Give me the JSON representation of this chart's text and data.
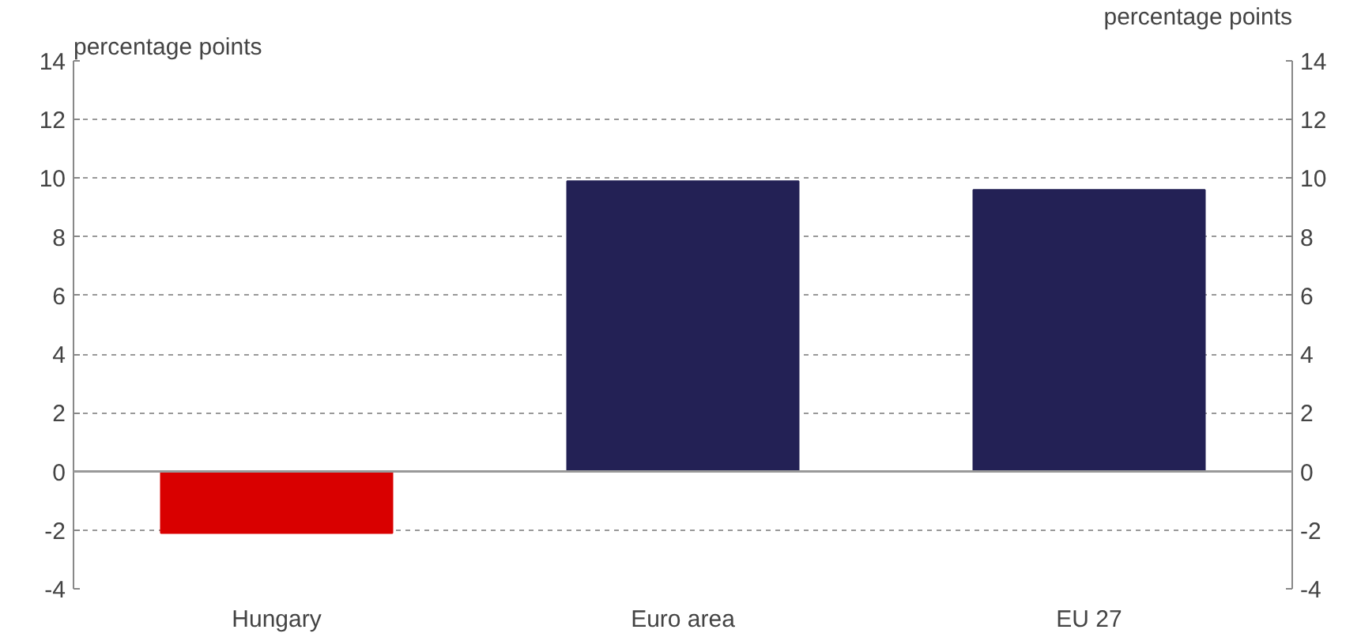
{
  "chart_data": {
    "type": "bar",
    "ylabel": "percentage points",
    "y2label": "percentage points",
    "categories": [
      "Hungary",
      "Euro area",
      "EU 27"
    ],
    "values": [
      -2.1,
      9.9,
      9.6
    ],
    "colors": [
      "#d90000",
      "#232155",
      "#232155"
    ],
    "ylim": [
      -4,
      14
    ],
    "yticks": [
      -4,
      -2,
      0,
      2,
      4,
      6,
      8,
      10,
      12,
      14
    ],
    "y2lim": [
      -4,
      14
    ],
    "y2ticks": [
      -4,
      -2,
      0,
      2,
      4,
      6,
      8,
      10,
      12,
      14
    ],
    "grid": "y"
  }
}
